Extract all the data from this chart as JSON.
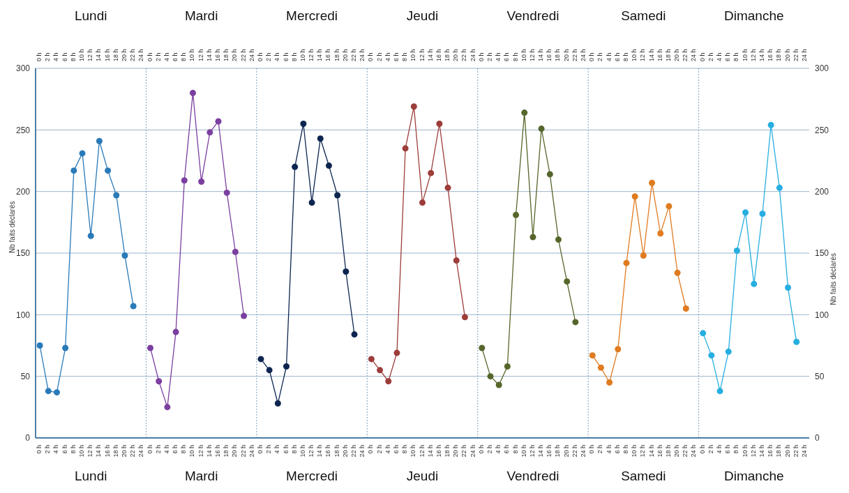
{
  "chart_data": {
    "type": "line",
    "ylabel": "Nb faits déclarés",
    "y2label": "Nb faits déclarés",
    "categories": [
      "0 h",
      "2 h",
      "4 h",
      "6 h",
      "8 h",
      "10 h",
      "12 h",
      "14 h",
      "16 h",
      "18 h",
      "20 h",
      "22 h",
      "24 h",
      "0 h",
      "2 h",
      "4 h",
      "6 h",
      "8 h",
      "10 h",
      "12 h",
      "14 h",
      "16 h",
      "18 h",
      "20 h",
      "22 h",
      "24 h",
      "0 h",
      "2 h",
      "4 h",
      "6 h",
      "8 h",
      "10 h",
      "12 h",
      "14 h",
      "16 h",
      "18 h",
      "20 h",
      "22 h",
      "24 h",
      "0 h",
      "2 h",
      "4 h",
      "6 h",
      "8 h",
      "10 h",
      "12 h",
      "14 h",
      "16 h",
      "18 h",
      "20 h",
      "22 h",
      "24 h",
      "0 h",
      "2 h",
      "4 h",
      "6 h",
      "8 h",
      "10 h",
      "12 h",
      "14 h",
      "16 h",
      "18 h",
      "20 h",
      "22 h",
      "24 h",
      "0 h",
      "2 h",
      "4 h",
      "6 h",
      "8 h",
      "10 h",
      "12 h",
      "14 h",
      "16 h",
      "18 h",
      "20 h",
      "22 h",
      "24 h",
      "0 h",
      "2 h",
      "4 h",
      "6 h",
      "8 h",
      "10 h",
      "12 h",
      "14 h",
      "16 h",
      "18 h",
      "20 h",
      "22 h",
      "24 h"
    ],
    "series": [
      {
        "color": "#2a7ab8",
        "values": [
          75,
          38,
          37,
          73,
          217,
          231,
          164,
          241,
          217,
          197,
          148,
          107,
          null,
          null,
          null,
          null,
          null,
          null,
          null,
          null,
          null,
          null,
          null,
          null,
          null,
          null,
          null,
          null,
          null,
          null,
          null,
          null,
          null,
          null,
          null,
          null,
          null,
          null,
          null,
          null,
          null,
          null,
          null,
          null,
          null,
          null,
          null,
          null,
          null,
          null,
          null,
          null,
          null,
          null,
          null,
          null,
          null,
          null,
          null,
          null,
          null,
          null,
          null,
          null,
          null,
          null,
          null,
          null,
          null,
          null,
          null,
          null,
          null,
          null,
          null,
          null,
          null,
          null,
          null,
          null,
          null,
          null,
          null,
          null,
          null,
          null,
          null,
          null,
          null,
          null,
          null
        ]
      },
      {
        "color": "#7b3fa0",
        "values": [
          null,
          null,
          null,
          null,
          null,
          null,
          null,
          null,
          null,
          null,
          null,
          null,
          null,
          73,
          46,
          25,
          86,
          209,
          280,
          208,
          248,
          257,
          199,
          151,
          99,
          null,
          null,
          null,
          null,
          null,
          null,
          null,
          null,
          null,
          null,
          null,
          null,
          null,
          null,
          null,
          null,
          null,
          null,
          null,
          null,
          null,
          null,
          null,
          null,
          null,
          null,
          null,
          null,
          null,
          null,
          null,
          null,
          null,
          null,
          null,
          null,
          null,
          null,
          null,
          null,
          null,
          null,
          null,
          null,
          null,
          null,
          null,
          null,
          null,
          null,
          null,
          null,
          null,
          null,
          null,
          null,
          null,
          null,
          null,
          null,
          null,
          null,
          null,
          null,
          null,
          null
        ]
      },
      {
        "color": "#0d2550",
        "values": [
          null,
          null,
          null,
          null,
          null,
          null,
          null,
          null,
          null,
          null,
          null,
          null,
          null,
          null,
          null,
          null,
          null,
          null,
          null,
          null,
          null,
          null,
          null,
          null,
          null,
          null,
          64,
          55,
          28,
          58,
          220,
          255,
          191,
          243,
          221,
          197,
          135,
          84,
          null,
          null,
          null,
          null,
          null,
          null,
          null,
          null,
          null,
          null,
          null,
          null,
          null,
          null,
          null,
          null,
          null,
          null,
          null,
          null,
          null,
          null,
          null,
          null,
          null,
          null,
          null,
          null,
          null,
          null,
          null,
          null,
          null,
          null,
          null,
          null,
          null,
          null,
          null,
          null,
          null,
          null,
          null,
          null,
          null,
          null,
          null,
          null,
          null,
          null,
          null,
          null,
          null
        ]
      },
      {
        "color": "#9c3d3a",
        "values": [
          null,
          null,
          null,
          null,
          null,
          null,
          null,
          null,
          null,
          null,
          null,
          null,
          null,
          null,
          null,
          null,
          null,
          null,
          null,
          null,
          null,
          null,
          null,
          null,
          null,
          null,
          null,
          null,
          null,
          null,
          null,
          null,
          null,
          null,
          null,
          null,
          null,
          null,
          null,
          64,
          55,
          46,
          69,
          235,
          269,
          191,
          215,
          255,
          203,
          144,
          98,
          null,
          null,
          null,
          null,
          null,
          null,
          null,
          null,
          null,
          null,
          null,
          null,
          null,
          null,
          null,
          null,
          null,
          null,
          null,
          null,
          null,
          null,
          null,
          null,
          null,
          null,
          null,
          null,
          null,
          null,
          null,
          null,
          null,
          null,
          null,
          null,
          null,
          null,
          null,
          null
        ]
      },
      {
        "color": "#56662b",
        "values": [
          null,
          null,
          null,
          null,
          null,
          null,
          null,
          null,
          null,
          null,
          null,
          null,
          null,
          null,
          null,
          null,
          null,
          null,
          null,
          null,
          null,
          null,
          null,
          null,
          null,
          null,
          null,
          null,
          null,
          null,
          null,
          null,
          null,
          null,
          null,
          null,
          null,
          null,
          null,
          null,
          null,
          null,
          null,
          null,
          null,
          null,
          null,
          null,
          null,
          null,
          null,
          null,
          73,
          50,
          43,
          58,
          181,
          264,
          163,
          251,
          214,
          161,
          127,
          94,
          null,
          null,
          null,
          null,
          null,
          null,
          null,
          null,
          null,
          null,
          null,
          null,
          null,
          null,
          null,
          null,
          null,
          null,
          null,
          null,
          null,
          null,
          null,
          null,
          null,
          null,
          null
        ]
      },
      {
        "color": "#e07b20",
        "values": [
          null,
          null,
          null,
          null,
          null,
          null,
          null,
          null,
          null,
          null,
          null,
          null,
          null,
          null,
          null,
          null,
          null,
          null,
          null,
          null,
          null,
          null,
          null,
          null,
          null,
          null,
          null,
          null,
          null,
          null,
          null,
          null,
          null,
          null,
          null,
          null,
          null,
          null,
          null,
          null,
          null,
          null,
          null,
          null,
          null,
          null,
          null,
          null,
          null,
          null,
          null,
          null,
          null,
          null,
          null,
          null,
          null,
          null,
          null,
          null,
          null,
          null,
          null,
          null,
          null,
          67,
          57,
          45,
          72,
          142,
          196,
          148,
          207,
          166,
          188,
          134,
          105,
          null,
          null,
          null,
          null,
          null,
          null,
          null,
          null,
          null,
          null,
          null,
          null,
          null,
          null
        ]
      },
      {
        "color": "#27aee0",
        "values": [
          null,
          null,
          null,
          null,
          null,
          null,
          null,
          null,
          null,
          null,
          null,
          null,
          null,
          null,
          null,
          null,
          null,
          null,
          null,
          null,
          null,
          null,
          null,
          null,
          null,
          null,
          null,
          null,
          null,
          null,
          null,
          null,
          null,
          null,
          null,
          null,
          null,
          null,
          null,
          null,
          null,
          null,
          null,
          null,
          null,
          null,
          null,
          null,
          null,
          null,
          null,
          null,
          null,
          null,
          null,
          null,
          null,
          null,
          null,
          null,
          null,
          null,
          null,
          null,
          null,
          null,
          null,
          null,
          null,
          null,
          null,
          null,
          null,
          null,
          null,
          null,
          null,
          null,
          85,
          67,
          38,
          70,
          152,
          183,
          125,
          182,
          254,
          203,
          122,
          78,
          null
        ]
      }
    ],
    "ylim": [
      0,
      300
    ],
    "yticks": [
      0,
      50,
      100,
      150,
      200,
      250,
      300
    ],
    "y2lim": [
      0,
      300
    ],
    "y2ticks": [
      0,
      50,
      100,
      150,
      200,
      250,
      300
    ],
    "annotations": [
      "Lundi",
      "Mardi",
      "Mercredi",
      "Jeudi",
      "Vendredi",
      "Samedi",
      "Dimanche"
    ],
    "grid": "y",
    "marker": "circle",
    "line_style": "solid"
  }
}
